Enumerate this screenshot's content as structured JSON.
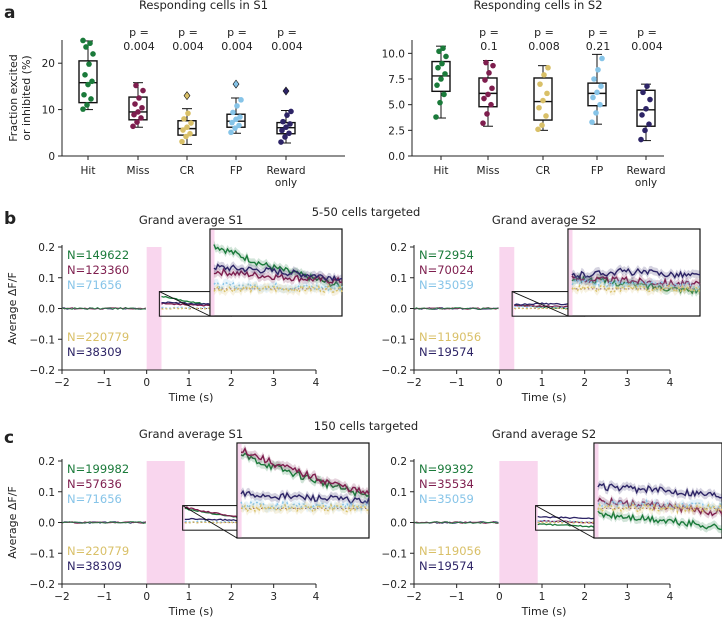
{
  "panel_labels": {
    "a": "a",
    "b": "b",
    "c": "c"
  },
  "colors": {
    "Hit": "#1a7a3a",
    "Miss": "#7e1e4e",
    "CR": "#d9c068",
    "FP": "#86c4e8",
    "Reward only": "#2d2466",
    "stim": "#f9d6ee",
    "zero": "#7a3a6a"
  },
  "chart_data": [
    {
      "id": "a-S1",
      "type": "box",
      "title": "Responding cells in S1",
      "ylabel": "Fraction excited or inhibited (%)",
      "ylabel_lines": [
        "Fraction excited",
        "or inhibited (%)"
      ],
      "ylim": [
        0,
        25
      ],
      "yticks": [
        0,
        10,
        20
      ],
      "categories": [
        "Hit",
        "Miss",
        "CR",
        "FP",
        "Reward only"
      ],
      "pvalues": [
        "",
        "p = 0.004",
        "p = 0.004",
        "p = 0.004",
        "p = 0.004"
      ],
      "boxes": [
        {
          "q1": 11.5,
          "median": 15.8,
          "q3": 20.5,
          "whislo": 10.0,
          "whishi": 24.8,
          "fliers": [],
          "points": [
            10.1,
            11.0,
            12.3,
            13.2,
            15.4,
            16.1,
            17.5,
            19.8,
            22.0,
            23.5,
            24.3,
            24.9
          ]
        },
        {
          "q1": 7.8,
          "median": 9.5,
          "q3": 12.7,
          "whislo": 6.2,
          "whishi": 15.8,
          "fliers": [],
          "points": [
            6.4,
            7.3,
            8.2,
            8.9,
            9.5,
            10.4,
            11.2,
            12.5,
            14.1,
            15.2
          ]
        },
        {
          "q1": 4.5,
          "median": 5.9,
          "q3": 7.6,
          "whislo": 2.5,
          "whishi": 10.2,
          "fliers": [
            13.0
          ],
          "points": [
            3.1,
            4.2,
            4.8,
            5.6,
            6.2,
            7.1,
            8.0,
            9.2
          ]
        },
        {
          "q1": 6.2,
          "median": 7.5,
          "q3": 9.0,
          "whislo": 4.9,
          "whishi": 12.5,
          "fliers": [
            15.5
          ],
          "points": [
            5.1,
            6.0,
            6.6,
            7.2,
            7.9,
            8.4,
            9.4,
            10.8,
            12.1
          ]
        },
        {
          "q1": 4.8,
          "median": 6.1,
          "q3": 7.2,
          "whislo": 2.8,
          "whishi": 9.8,
          "fliers": [
            14.0
          ],
          "points": [
            3.0,
            4.1,
            4.9,
            5.5,
            6.2,
            6.9,
            7.4,
            8.8,
            9.6
          ]
        }
      ]
    },
    {
      "id": "a-S2",
      "type": "box",
      "title": "Responding cells in S2",
      "ylabel": "",
      "ylim": [
        0,
        11.3
      ],
      "yticks": [
        0.0,
        2.5,
        5.0,
        7.5,
        10.0
      ],
      "ytick_labels": [
        "0.0",
        "2.5",
        "5.0",
        "7.5",
        "10.0"
      ],
      "categories": [
        "Hit",
        "Miss",
        "CR",
        "FP",
        "Reward only"
      ],
      "pvalues": [
        "",
        "p = 0.1",
        "p = 0.008",
        "p = 0.21",
        "p = 0.004"
      ],
      "boxes": [
        {
          "q1": 6.3,
          "median": 7.8,
          "q3": 9.2,
          "whislo": 3.7,
          "whishi": 10.7,
          "fliers": [],
          "points": [
            3.8,
            5.2,
            6.0,
            6.9,
            7.5,
            8.0,
            8.6,
            9.0,
            9.7,
            10.2,
            10.5
          ]
        },
        {
          "q1": 4.8,
          "median": 6.1,
          "q3": 7.6,
          "whislo": 2.9,
          "whishi": 9.3,
          "fliers": [],
          "points": [
            3.2,
            4.1,
            5.0,
            5.6,
            6.0,
            6.6,
            7.4,
            8.1,
            8.8,
            9.1
          ]
        },
        {
          "q1": 3.5,
          "median": 5.3,
          "q3": 7.6,
          "whislo": 2.5,
          "whishi": 8.8,
          "fliers": [],
          "points": [
            2.6,
            3.0,
            3.9,
            4.7,
            5.4,
            6.1,
            7.0,
            7.9,
            8.6
          ]
        },
        {
          "q1": 4.9,
          "median": 6.1,
          "q3": 7.1,
          "whislo": 3.1,
          "whishi": 9.9,
          "fliers": [],
          "points": [
            3.3,
            4.2,
            5.0,
            5.7,
            6.2,
            6.8,
            7.5,
            8.4,
            9.5
          ]
        },
        {
          "q1": 2.9,
          "median": 4.5,
          "q3": 6.4,
          "whislo": 1.5,
          "whishi": 7.0,
          "fliers": [],
          "points": [
            1.6,
            2.5,
            3.1,
            4.0,
            4.6,
            5.5,
            6.2,
            6.8
          ]
        }
      ]
    },
    {
      "id": "b-S1",
      "type": "line",
      "title": "Grand average S1",
      "xlabel": "Time (s)",
      "ylabel": "Average ΔF/F",
      "xlim": [
        -2,
        4
      ],
      "ylim": [
        -0.2,
        0.2
      ],
      "xticks": [
        -2,
        -1,
        0,
        1,
        2,
        3,
        4
      ],
      "yticks": [
        -0.2,
        -0.1,
        0.0,
        0.1,
        0.2
      ],
      "stim_window": [
        0,
        0.35
      ],
      "zoom": {
        "t": [
          0.3,
          2.0
        ],
        "y": [
          -0.025,
          0.055
        ]
      },
      "ncounts": [
        {
          "label": "N=149622",
          "group": "Hit"
        },
        {
          "label": "N=123360",
          "group": "Miss"
        },
        {
          "label": "N=71656",
          "group": "FP"
        },
        {
          "label": "N=220779",
          "group": "CR"
        },
        {
          "label": "N=38309",
          "group": "Reward only"
        }
      ],
      "series": [
        {
          "name": "Hit",
          "values": [
            [
              0.35,
              0.04
            ],
            [
              0.6,
              0.033
            ],
            [
              1.0,
              0.022
            ],
            [
              1.5,
              0.012
            ],
            [
              2.0,
              0.002
            ],
            [
              2.5,
              -0.006
            ],
            [
              3.0,
              -0.012
            ],
            [
              3.5,
              -0.013
            ],
            [
              4.0,
              -0.012
            ]
          ]
        },
        {
          "name": "Miss",
          "values": [
            [
              0.35,
              0.016
            ],
            [
              1.0,
              0.012
            ],
            [
              2.0,
              0.007
            ],
            [
              3.0,
              0.0
            ],
            [
              4.0,
              -0.004
            ]
          ]
        },
        {
          "name": "Reward only",
          "values": [
            [
              0.35,
              0.02
            ],
            [
              1.0,
              0.017
            ],
            [
              2.0,
              0.01
            ],
            [
              3.0,
              0.005
            ],
            [
              4.0,
              0.004
            ]
          ]
        },
        {
          "name": "FP",
          "values": [
            [
              0.35,
              0.003
            ],
            [
              2.0,
              0.001
            ],
            [
              4.0,
              -0.001
            ]
          ]
        },
        {
          "name": "CR",
          "values": [
            [
              0.35,
              0.0
            ],
            [
              2.0,
              0.0
            ],
            [
              4.0,
              0.0
            ]
          ]
        }
      ]
    },
    {
      "id": "b-S2",
      "type": "line",
      "title": "Grand average S2",
      "xlabel": "Time (s)",
      "ylabel": "",
      "xlim": [
        -2,
        4
      ],
      "ylim": [
        -0.2,
        0.2
      ],
      "xticks": [
        -2,
        -1,
        0,
        1,
        2,
        3,
        4
      ],
      "yticks": [
        -0.2,
        -0.1,
        0.0,
        0.1,
        0.2
      ],
      "stim_window": [
        0,
        0.35
      ],
      "zoom": {
        "t": [
          0.3,
          2.0
        ],
        "y": [
          -0.025,
          0.055
        ]
      },
      "ncounts": [
        {
          "label": "N=72954",
          "group": "Hit"
        },
        {
          "label": "N=70024",
          "group": "Miss"
        },
        {
          "label": "N=35059",
          "group": "FP"
        },
        {
          "label": "N=119056",
          "group": "CR"
        },
        {
          "label": "N=19574",
          "group": "Reward only"
        }
      ],
      "series": [
        {
          "name": "Hit",
          "values": [
            [
              0.35,
              0.01
            ],
            [
              1.0,
              0.005
            ],
            [
              2.0,
              -0.002
            ],
            [
              3.0,
              -0.01
            ],
            [
              4.0,
              -0.013
            ]
          ]
        },
        {
          "name": "Miss",
          "values": [
            [
              0.35,
              0.009
            ],
            [
              1.0,
              0.008
            ],
            [
              2.0,
              0.004
            ],
            [
              3.0,
              0.0
            ],
            [
              4.0,
              -0.004
            ]
          ]
        },
        {
          "name": "Reward only",
          "values": [
            [
              0.35,
              0.012
            ],
            [
              1.0,
              0.016
            ],
            [
              2.0,
              0.012
            ],
            [
              3.0,
              0.01
            ],
            [
              4.0,
              0.01
            ]
          ]
        },
        {
          "name": "FP",
          "values": [
            [
              0.35,
              0.006
            ],
            [
              2.0,
              0.002
            ],
            [
              4.0,
              0.0
            ]
          ]
        },
        {
          "name": "CR",
          "values": [
            [
              0.35,
              0.0
            ],
            [
              2.0,
              0.0
            ],
            [
              4.0,
              0.0
            ]
          ]
        }
      ]
    },
    {
      "id": "c-S1",
      "type": "line",
      "title": "Grand average S1",
      "xlabel": "Time (s)",
      "ylabel": "Average ΔF/F",
      "xlim": [
        -2,
        4
      ],
      "ylim": [
        -0.2,
        0.2
      ],
      "xticks": [
        -2,
        -1,
        0,
        1,
        2,
        3,
        4
      ],
      "yticks": [
        -0.2,
        -0.1,
        0.0,
        0.1,
        0.2
      ],
      "stim_window": [
        0,
        0.9
      ],
      "zoom": {
        "t": [
          0.85,
          2.5
        ],
        "y": [
          -0.025,
          0.055
        ]
      },
      "ncounts": [
        {
          "label": "N=199982",
          "group": "Hit"
        },
        {
          "label": "N=57636",
          "group": "Miss"
        },
        {
          "label": "N=71656",
          "group": "FP"
        },
        {
          "label": "N=220779",
          "group": "CR"
        },
        {
          "label": "N=38309",
          "group": "Reward only"
        }
      ],
      "series": [
        {
          "name": "Hit",
          "values": [
            [
              0.9,
              0.045
            ],
            [
              1.3,
              0.035
            ],
            [
              2.0,
              0.02
            ],
            [
              2.5,
              0.01
            ],
            [
              3.0,
              0.002
            ],
            [
              3.5,
              -0.004
            ],
            [
              4.0,
              -0.008
            ]
          ]
        },
        {
          "name": "Miss",
          "values": [
            [
              0.9,
              0.05
            ],
            [
              1.3,
              0.038
            ],
            [
              2.0,
              0.022
            ],
            [
              2.5,
              0.012
            ],
            [
              3.0,
              0.004
            ],
            [
              4.0,
              -0.005
            ]
          ]
        },
        {
          "name": "Reward only",
          "values": [
            [
              0.9,
              0.012
            ],
            [
              2.0,
              0.008
            ],
            [
              3.0,
              0.004
            ],
            [
              4.0,
              0.002
            ]
          ]
        },
        {
          "name": "FP",
          "values": [
            [
              0.9,
              0.003
            ],
            [
              2.5,
              0.001
            ],
            [
              4.0,
              0.0
            ]
          ]
        },
        {
          "name": "CR",
          "values": [
            [
              0.9,
              0.0
            ],
            [
              2.5,
              0.0
            ],
            [
              4.0,
              0.0
            ]
          ]
        }
      ]
    },
    {
      "id": "c-S2",
      "type": "line",
      "title": "Grand average S2",
      "xlabel": "Time (s)",
      "ylabel": "",
      "xlim": [
        -2,
        4
      ],
      "ylim": [
        -0.2,
        0.2
      ],
      "xticks": [
        -2,
        -1,
        0,
        1,
        2,
        3,
        4
      ],
      "yticks": [
        -0.2,
        -0.1,
        0.0,
        0.1,
        0.2
      ],
      "stim_window": [
        0,
        0.9
      ],
      "zoom": {
        "t": [
          0.85,
          2.5
        ],
        "y": [
          -0.025,
          0.055
        ]
      },
      "ncounts": [
        {
          "label": "N=99392",
          "group": "Hit"
        },
        {
          "label": "N=35534",
          "group": "Miss"
        },
        {
          "label": "N=35059",
          "group": "FP"
        },
        {
          "label": "N=119056",
          "group": "CR"
        },
        {
          "label": "N=19574",
          "group": "Reward only"
        }
      ],
      "series": [
        {
          "name": "Hit",
          "values": [
            [
              0.9,
              -0.005
            ],
            [
              2.0,
              -0.012
            ],
            [
              3.0,
              -0.02
            ],
            [
              4.0,
              -0.025
            ]
          ]
        },
        {
          "name": "Miss",
          "values": [
            [
              0.9,
              0.006
            ],
            [
              2.0,
              0.0
            ],
            [
              3.0,
              -0.008
            ],
            [
              4.0,
              -0.01
            ]
          ]
        },
        {
          "name": "Reward only",
          "values": [
            [
              0.9,
              0.018
            ],
            [
              2.0,
              0.014
            ],
            [
              3.0,
              0.008
            ],
            [
              4.0,
              0.006
            ]
          ]
        },
        {
          "name": "FP",
          "values": [
            [
              0.9,
              0.005
            ],
            [
              2.5,
              0.001
            ],
            [
              4.0,
              -0.001
            ]
          ]
        },
        {
          "name": "CR",
          "values": [
            [
              0.9,
              0.0
            ],
            [
              2.5,
              0.0
            ],
            [
              4.0,
              0.0
            ]
          ]
        }
      ]
    }
  ],
  "headers": {
    "b": "5-50 cells targeted",
    "c": "150 cells targeted"
  }
}
